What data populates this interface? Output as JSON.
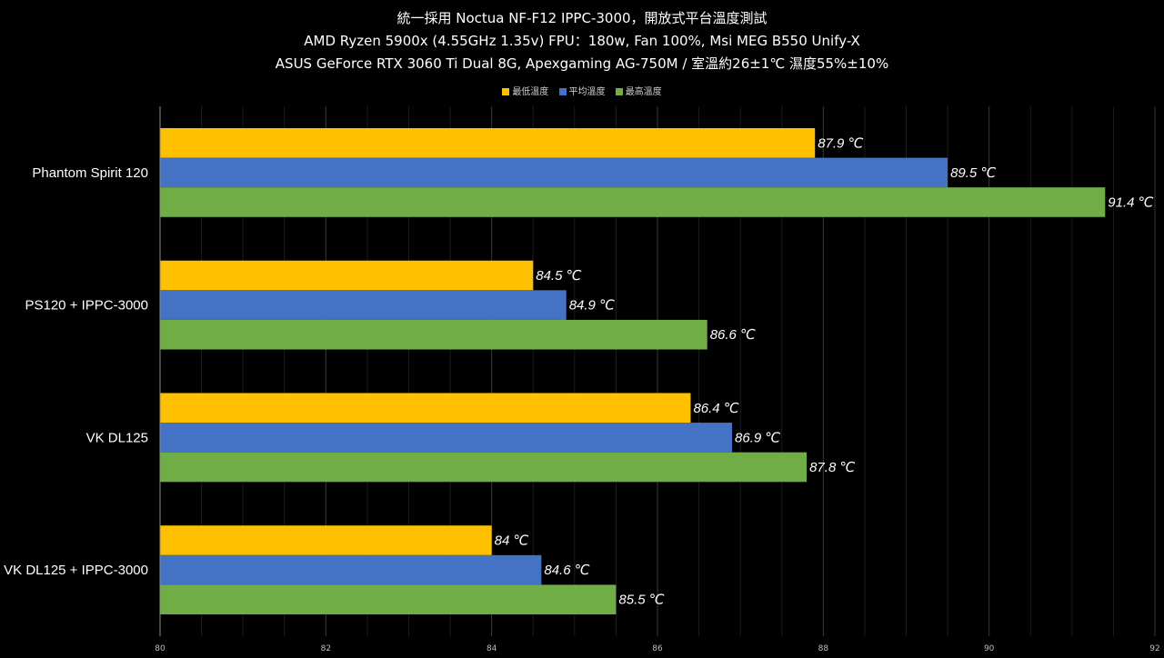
{
  "chart_data": {
    "type": "bar",
    "orientation": "horizontal",
    "title_lines": [
      "統一採用 Noctua NF-F12 IPPC-3000，開放式平台溫度測試",
      "AMD Ryzen 5900x (4.55GHz 1.35v) FPU：180w, Fan 100%, Msi MEG B550 Unify-X",
      "ASUS GeForce RTX 3060 Ti Dual 8G, Apexgaming AG-750M / 室溫約26±1℃ 濕度55%±10%"
    ],
    "categories": [
      "Phantom Spirit 120",
      "PS120 + IPPC-3000",
      "VK DL125",
      "VK DL125 + IPPC-3000"
    ],
    "series": [
      {
        "name": "最低溫度",
        "color": "#FFC000",
        "values": [
          87.9,
          84.5,
          86.4,
          84
        ],
        "labels": [
          "87.9 ℃",
          "84.5 ℃",
          "86.4 ℃",
          "84 ℃"
        ]
      },
      {
        "name": "平均溫度",
        "color": "#4472C4",
        "values": [
          89.5,
          84.9,
          86.9,
          84.6
        ],
        "labels": [
          "89.5 ℃",
          "84.9 ℃",
          "86.9 ℃",
          "84.6 ℃"
        ]
      },
      {
        "name": "最高溫度",
        "color": "#70AD47",
        "values": [
          91.4,
          86.6,
          87.8,
          85.5
        ],
        "labels": [
          "91.4 ℃",
          "86.6 ℃",
          "87.8 ℃",
          "85.5 ℃"
        ]
      }
    ],
    "xlim": [
      80,
      92
    ],
    "xticks": [
      "80",
      "82",
      "84",
      "86",
      "88",
      "90",
      "92"
    ],
    "grid": true,
    "legend_position": "top"
  }
}
